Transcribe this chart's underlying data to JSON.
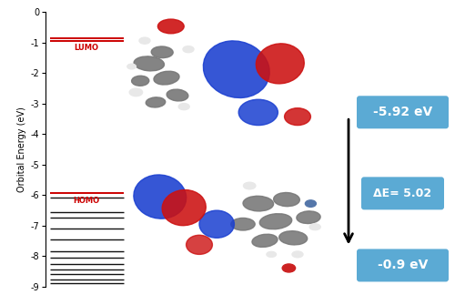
{
  "ylabel": "Orbital Energy (eV)",
  "ylim": [
    -9,
    0
  ],
  "yticks": [
    0,
    -1,
    -2,
    -3,
    -4,
    -5,
    -6,
    -7,
    -8,
    -9
  ],
  "ytick_labels": [
    "0",
    "-1",
    "-2",
    "-3",
    "-4",
    "-5",
    "-6",
    "-7",
    "-8",
    "-9"
  ],
  "lumo_energy": -0.9,
  "homo_energy": -5.92,
  "lumo_label": "LUMO",
  "homo_label": "HOMO",
  "label_color": "#cc0000",
  "box_color": "#5baad4",
  "box_text_color": "white",
  "lumo_box_text": "-0.9 eV",
  "homo_box_text": "-5.92 eV",
  "delta_e_text": "ΔE= 5.02",
  "arrow_color": "black",
  "energy_levels": [
    {
      "y": -0.85,
      "type": "lumo"
    },
    {
      "y": -0.93,
      "type": "lumo"
    },
    {
      "y": -5.92,
      "type": "homo"
    },
    {
      "y": -6.08,
      "type": "normal"
    },
    {
      "y": -6.55,
      "type": "normal"
    },
    {
      "y": -6.72,
      "type": "normal"
    },
    {
      "y": -7.1,
      "type": "normal"
    },
    {
      "y": -7.45,
      "type": "normal"
    },
    {
      "y": -7.85,
      "type": "normal"
    },
    {
      "y": -8.05,
      "type": "normal"
    },
    {
      "y": -8.25,
      "type": "normal"
    },
    {
      "y": -8.45,
      "type": "normal"
    },
    {
      "y": -8.6,
      "type": "normal"
    },
    {
      "y": -8.75,
      "type": "normal"
    },
    {
      "y": -8.88,
      "type": "normal"
    }
  ],
  "level_color_normal": "#111111",
  "level_color_homo": "#cc0000",
  "level_color_lumo": "#cc0000",
  "background_color": "white"
}
